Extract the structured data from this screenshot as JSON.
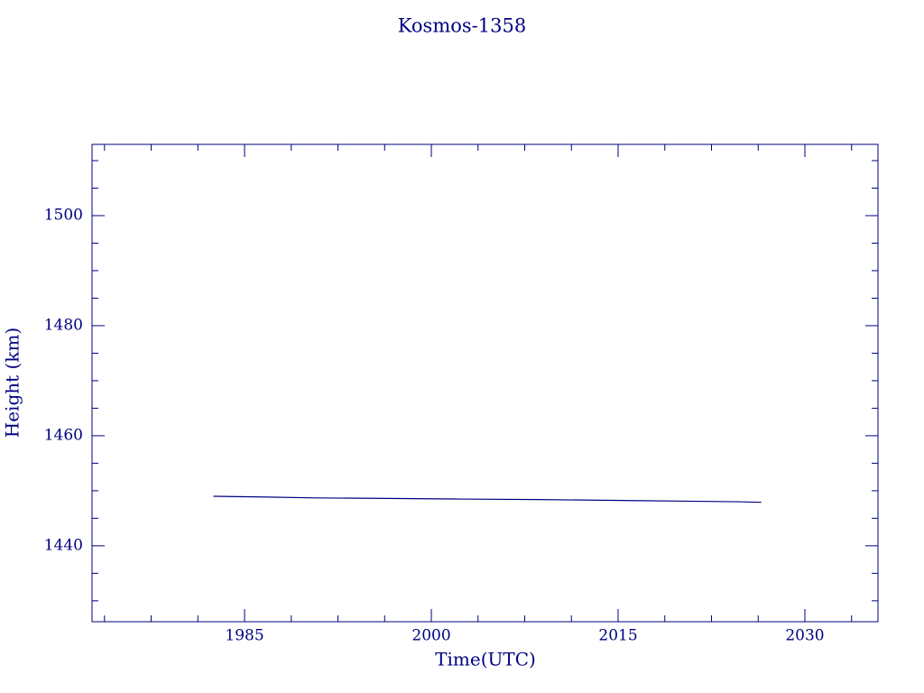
{
  "chart_data": {
    "type": "line",
    "title": "Kosmos-1358",
    "xlabel": "Time(UTC)",
    "ylabel": "Height (km)",
    "x": [
      1982.5,
      1987,
      1990.7,
      1996.5,
      2001.9,
      2008.6,
      2016.9,
      2024.7,
      2026.5
    ],
    "series": [
      {
        "name": "Kosmos-1358",
        "color": "#000080",
        "values": [
          1449.0,
          1448.85,
          1448.7,
          1448.6,
          1448.5,
          1448.4,
          1448.2,
          1448.0,
          1447.9
        ]
      }
    ],
    "xlim": [
      1972.75,
      2035.87
    ],
    "xticks": [
      1985,
      2000,
      2015,
      2030
    ],
    "ylim": [
      1426.2,
      1512.95
    ],
    "yticks": [
      1440,
      1460,
      1480,
      1500
    ]
  }
}
